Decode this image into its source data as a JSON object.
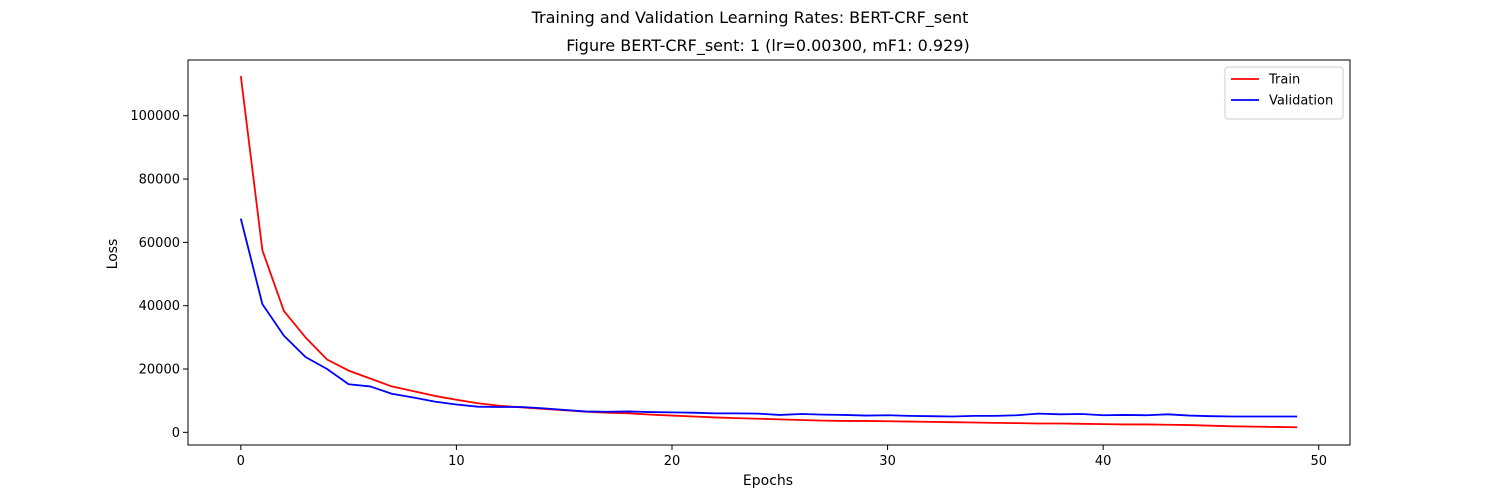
{
  "chart_data": {
    "type": "line",
    "title": "Training and Validation Learning Rates: BERT-CRF_sent",
    "subtitle": "Figure BERT-CRF_sent: 1 (lr=0.00300, mF1: 0.929)",
    "xlabel": "Epochs",
    "ylabel": "Loss",
    "xlim": [
      -2.45,
      51.45
    ],
    "ylim": [
      -4000,
      117600
    ],
    "xticks": [
      0,
      10,
      20,
      30,
      40,
      50
    ],
    "yticks": [
      0,
      20000,
      40000,
      60000,
      80000,
      100000
    ],
    "grid": false,
    "legend_position": "top-right",
    "x": [
      0,
      1,
      2,
      3,
      4,
      5,
      6,
      7,
      8,
      9,
      10,
      11,
      12,
      13,
      14,
      15,
      16,
      17,
      18,
      19,
      20,
      21,
      22,
      23,
      24,
      25,
      26,
      27,
      28,
      29,
      30,
      31,
      32,
      33,
      34,
      35,
      36,
      37,
      38,
      39,
      40,
      41,
      42,
      43,
      44,
      45,
      46,
      47,
      48,
      49
    ],
    "series": [
      {
        "name": "Train",
        "color": "#ff0000",
        "values": [
          112500,
          57500,
          38300,
          30000,
          23000,
          19500,
          17000,
          14500,
          13000,
          11500,
          10300,
          9200,
          8400,
          7900,
          7400,
          7000,
          6500,
          6200,
          6000,
          5600,
          5300,
          5000,
          4700,
          4500,
          4300,
          4100,
          3900,
          3700,
          3600,
          3600,
          3500,
          3400,
          3300,
          3200,
          3100,
          3000,
          2900,
          2800,
          2800,
          2700,
          2600,
          2500,
          2500,
          2400,
          2300,
          2100,
          1900,
          1800,
          1700,
          1600
        ]
      },
      {
        "name": "Validation",
        "color": "#0000ff",
        "values": [
          67500,
          40500,
          30500,
          23800,
          20000,
          15200,
          14500,
          12200,
          11000,
          9700,
          8800,
          8100,
          8000,
          8000,
          7600,
          7100,
          6600,
          6500,
          6600,
          6400,
          6300,
          6200,
          6000,
          6000,
          5900,
          5500,
          5800,
          5600,
          5500,
          5300,
          5400,
          5200,
          5100,
          5000,
          5200,
          5200,
          5400,
          5900,
          5700,
          5800,
          5400,
          5500,
          5400,
          5700,
          5300,
          5100,
          5000,
          5000,
          5000,
          5000
        ]
      }
    ]
  }
}
